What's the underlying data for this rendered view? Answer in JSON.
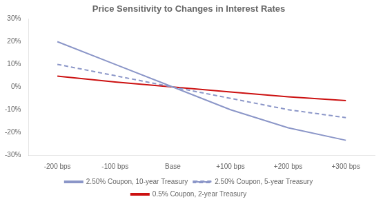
{
  "chart_data": {
    "type": "line",
    "title": "Price Sensitivity to Changes in Interest Rates",
    "x": [
      -200,
      -100,
      0,
      100,
      200,
      300
    ],
    "xlim": [
      -250,
      350
    ],
    "xticks": [
      {
        "value": -200,
        "label": "-200 bps"
      },
      {
        "value": -100,
        "label": "-100 bps"
      },
      {
        "value": 0,
        "label": "Base"
      },
      {
        "value": 100,
        "label": "+100 bps"
      },
      {
        "value": 200,
        "label": "+200 bps"
      },
      {
        "value": 300,
        "label": "+300 bps"
      }
    ],
    "ylim": [
      -30,
      30
    ],
    "yticks": [
      {
        "value": -30,
        "label": "-30%"
      },
      {
        "value": -20,
        "label": "-20%"
      },
      {
        "value": -10,
        "label": "-10%"
      },
      {
        "value": 0,
        "label": "0%"
      },
      {
        "value": 10,
        "label": "10%"
      },
      {
        "value": 20,
        "label": "20%"
      },
      {
        "value": 30,
        "label": "30%"
      }
    ],
    "series": [
      {
        "name": "2.50% Coupon, 10-year Treasury",
        "color": "#8b96c8",
        "line_style": "solid",
        "values": [
          20.0,
          10.0,
          0.0,
          -10.0,
          -18.0,
          -23.5
        ]
      },
      {
        "name": "2.50% Coupon, 5-year Treasury",
        "color": "#8b96c8",
        "line_style": "dashed",
        "values": [
          10.0,
          5.0,
          0.0,
          -5.0,
          -10.0,
          -13.5
        ]
      },
      {
        "name": "0.5% Coupon, 2-year Treasury",
        "color": "#cc1111",
        "line_style": "solid",
        "values": [
          4.8,
          2.2,
          0.0,
          -2.2,
          -4.3,
          -6.0
        ]
      }
    ],
    "legend": "bottom",
    "grid": false
  }
}
